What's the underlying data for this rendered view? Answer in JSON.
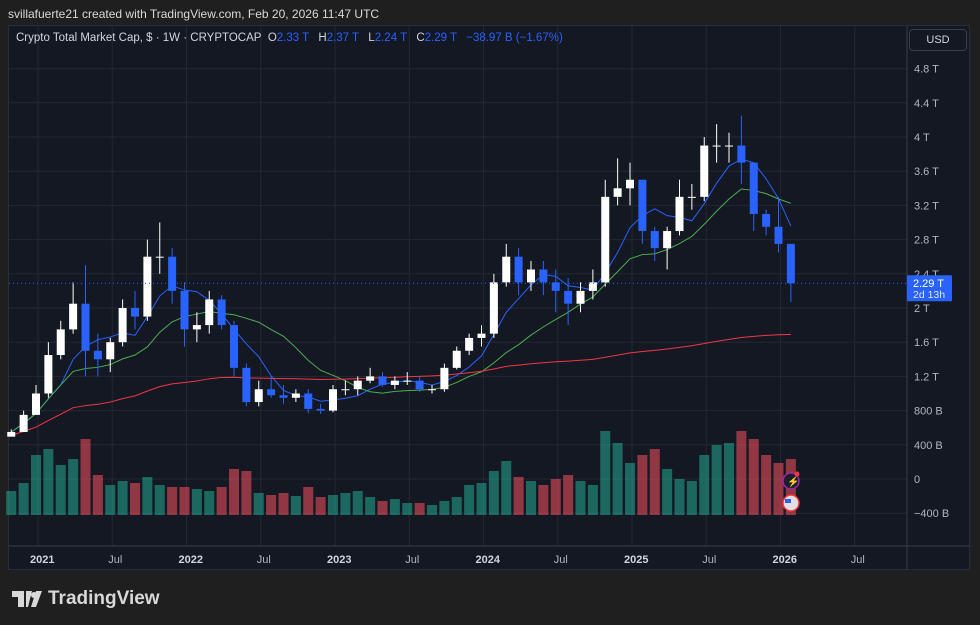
{
  "caption": "svillafuerte21 created with TradingView.com, Feb 20, 2026 11:47 UTC",
  "legend": {
    "symbol": "Crypto Total Market Cap, $ · 1W · CRYPTOCAP",
    "o_label": "O",
    "o": "2.33 T",
    "h_label": "H",
    "h": "2.37 T",
    "l_label": "L",
    "l": "2.24 T",
    "c_label": "C",
    "c": "2.29 T",
    "change": "−38.97 B (−1.67%)"
  },
  "currency_button": "USD",
  "price_label": {
    "value": "2.29 T",
    "countdown": "2d 13h"
  },
  "colors": {
    "up": "#ffffff",
    "down": "#2962ff",
    "ma_fast": "#2962ff",
    "ma_mid": "#4caf50",
    "ma_slow": "#f23645",
    "vol_up": "#22ab94",
    "vol_down": "#f7525f",
    "accent": "#2962ff"
  },
  "y_ticks": [
    "4.8 T",
    "4.4 T",
    "4 T",
    "3.6 T",
    "3.2 T",
    "2.8 T",
    "2.4 T",
    "2 T",
    "1.6 T",
    "1.2 T",
    "800 B",
    "400 B",
    "0",
    "−400 B"
  ],
  "x_ticks": [
    {
      "label": "2021",
      "bold": true
    },
    {
      "label": "Jul"
    },
    {
      "label": "2022",
      "bold": true
    },
    {
      "label": "Jul"
    },
    {
      "label": "2023",
      "bold": true
    },
    {
      "label": "Jul"
    },
    {
      "label": "2024",
      "bold": true
    },
    {
      "label": "Jul"
    },
    {
      "label": "2025",
      "bold": true
    },
    {
      "label": "Jul"
    },
    {
      "label": "2026",
      "bold": true
    },
    {
      "label": "Jul"
    }
  ],
  "brand": "TradingView",
  "chart_data": {
    "type": "candlestick",
    "y_unit": "T",
    "ylim": [
      -0.4,
      5.0
    ],
    "dates": [
      "2020-11",
      "2020-12",
      "2021-01",
      "2021-02",
      "2021-03",
      "2021-04",
      "2021-05",
      "2021-06",
      "2021-07",
      "2021-08",
      "2021-09",
      "2021-10",
      "2021-11",
      "2021-12",
      "2022-01",
      "2022-02",
      "2022-03",
      "2022-04",
      "2022-05",
      "2022-06",
      "2022-07",
      "2022-08",
      "2022-09",
      "2022-10",
      "2022-11",
      "2022-12",
      "2023-01",
      "2023-02",
      "2023-03",
      "2023-04",
      "2023-05",
      "2023-06",
      "2023-07",
      "2023-08",
      "2023-09",
      "2023-10",
      "2023-11",
      "2023-12",
      "2024-01",
      "2024-02",
      "2024-03",
      "2024-04",
      "2024-05",
      "2024-06",
      "2024-07",
      "2024-08",
      "2024-09",
      "2024-10",
      "2024-11",
      "2024-12",
      "2025-01",
      "2025-02",
      "2025-03",
      "2025-04",
      "2025-05",
      "2025-06",
      "2025-07",
      "2025-08",
      "2025-09",
      "2025-10",
      "2025-11",
      "2025-12",
      "2026-01",
      "2026-02"
    ],
    "close": [
      0.55,
      0.75,
      1.0,
      1.45,
      1.75,
      2.05,
      1.5,
      1.4,
      1.6,
      2.0,
      1.9,
      2.6,
      2.6,
      2.2,
      1.75,
      1.8,
      2.1,
      1.8,
      1.3,
      0.9,
      1.05,
      0.98,
      0.95,
      1.0,
      0.82,
      0.8,
      1.05,
      1.05,
      1.15,
      1.2,
      1.1,
      1.15,
      1.15,
      1.05,
      1.05,
      1.3,
      1.5,
      1.65,
      1.7,
      2.3,
      2.6,
      2.3,
      2.45,
      2.3,
      2.2,
      2.05,
      2.2,
      2.3,
      3.3,
      3.4,
      3.5,
      2.9,
      2.7,
      2.9,
      3.3,
      3.3,
      3.9,
      3.9,
      3.9,
      3.7,
      3.1,
      2.95,
      2.75,
      2.29
    ],
    "high": [
      0.58,
      0.8,
      1.1,
      1.6,
      1.85,
      2.3,
      2.5,
      1.7,
      1.65,
      2.1,
      2.2,
      2.8,
      3.0,
      2.7,
      2.3,
      1.95,
      2.2,
      2.15,
      1.85,
      1.35,
      1.15,
      1.2,
      1.1,
      1.05,
      1.05,
      0.88,
      1.1,
      1.15,
      1.2,
      1.3,
      1.25,
      1.2,
      1.25,
      1.2,
      1.1,
      1.35,
      1.55,
      1.7,
      1.8,
      2.4,
      2.75,
      2.7,
      2.55,
      2.55,
      2.45,
      2.35,
      2.3,
      2.45,
      3.5,
      3.75,
      3.7,
      3.5,
      2.95,
      2.95,
      3.5,
      3.45,
      4.0,
      4.15,
      4.05,
      4.25,
      3.7,
      3.15,
      3.3,
      2.5
    ],
    "low": [
      0.5,
      0.55,
      0.75,
      0.95,
      1.4,
      1.7,
      1.2,
      1.2,
      1.25,
      1.55,
      1.75,
      1.85,
      2.4,
      2.05,
      1.55,
      1.6,
      1.7,
      1.75,
      1.2,
      0.85,
      0.85,
      0.95,
      0.88,
      0.9,
      0.77,
      0.76,
      0.78,
      0.98,
      0.98,
      1.12,
      1.08,
      1.05,
      1.1,
      1.02,
      1.0,
      1.02,
      1.28,
      1.45,
      1.55,
      1.65,
      2.25,
      2.15,
      2.2,
      2.15,
      1.95,
      1.8,
      1.95,
      2.1,
      2.25,
      3.2,
      3.2,
      2.75,
      2.55,
      2.45,
      2.85,
      3.15,
      3.25,
      3.7,
      3.7,
      3.45,
      2.9,
      2.85,
      2.65,
      2.07
    ],
    "volume": [
      120,
      160,
      300,
      330,
      250,
      280,
      380,
      200,
      150,
      170,
      160,
      190,
      150,
      140,
      140,
      130,
      120,
      140,
      230,
      220,
      110,
      100,
      110,
      95,
      140,
      90,
      100,
      110,
      120,
      90,
      70,
      80,
      60,
      60,
      50,
      70,
      90,
      150,
      160,
      220,
      270,
      190,
      170,
      150,
      180,
      200,
      170,
      150,
      420,
      360,
      260,
      300,
      330,
      230,
      180,
      170,
      300,
      350,
      360,
      420,
      380,
      300,
      260,
      280
    ]
  }
}
